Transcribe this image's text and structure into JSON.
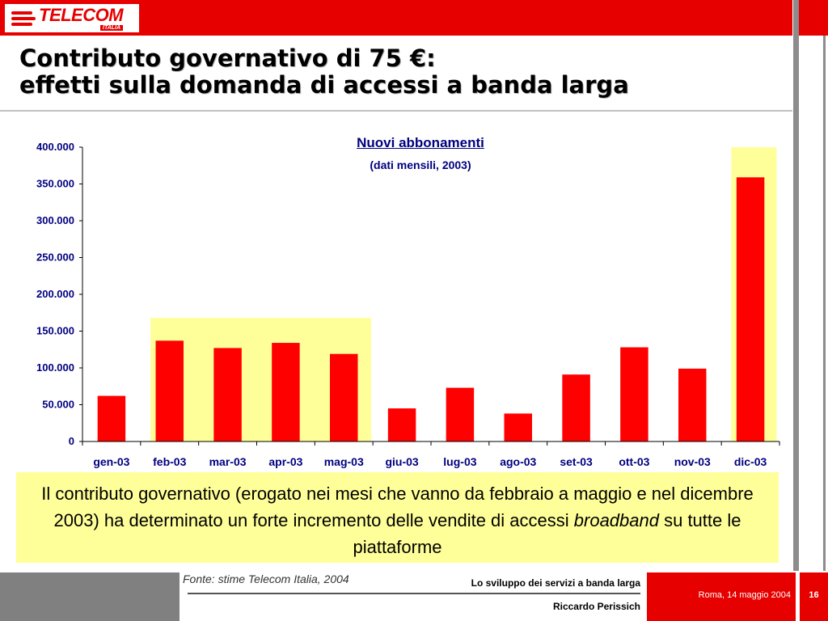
{
  "header": {
    "logo_text": "TELECOM",
    "logo_subtext": "ITALIA",
    "title_line1": "Contributo governativo di 75 €:",
    "title_line2": "effetti sulla domanda di accessi a banda larga"
  },
  "chart_data": {
    "type": "bar",
    "title": "Nuovi abbonamenti",
    "subtitle": "(dati mensili, 2003)",
    "categories": [
      "gen-03",
      "feb-03",
      "mar-03",
      "apr-03",
      "mag-03",
      "giu-03",
      "lug-03",
      "ago-03",
      "set-03",
      "ott-03",
      "nov-03",
      "dic-03"
    ],
    "values": [
      62000,
      137000,
      127000,
      134000,
      119000,
      45000,
      73000,
      38000,
      91000,
      128000,
      99000,
      359000
    ],
    "ylim": [
      0,
      400000
    ],
    "yticks": [
      0,
      50000,
      100000,
      150000,
      200000,
      250000,
      300000,
      350000,
      400000
    ],
    "ytick_labels": [
      "0",
      "50.000",
      "100.000",
      "150.000",
      "200.000",
      "250.000",
      "300.000",
      "350.000",
      "400.000"
    ],
    "highlight_ranges": [
      {
        "from": "feb-03",
        "to": "mag-03",
        "top_value": 168000
      },
      {
        "from": "dic-03",
        "to": "dic-03",
        "top_value": 400000
      }
    ],
    "bar_color": "#ff0000",
    "highlight_color": "#ffff99",
    "grid": false
  },
  "note": {
    "text_before": "Il contributo governativo (erogato nei mesi che vanno da febbraio a maggio e nel dicembre 2003) ha determinato un forte incremento delle vendite di accessi ",
    "text_em": "broadband",
    "text_after": " su tutte le piattaforme"
  },
  "footer": {
    "source": "Fonte: stime Telecom Italia, 2004",
    "presentation_title": "Lo sviluppo dei servizi a banda larga",
    "author": "Riccardo Perissich",
    "date": "Roma, 14 maggio  2004",
    "page": "16"
  },
  "colors": {
    "brand_red": "#e60000",
    "axis_text": "#000080",
    "note_bg": "#ffff99"
  }
}
